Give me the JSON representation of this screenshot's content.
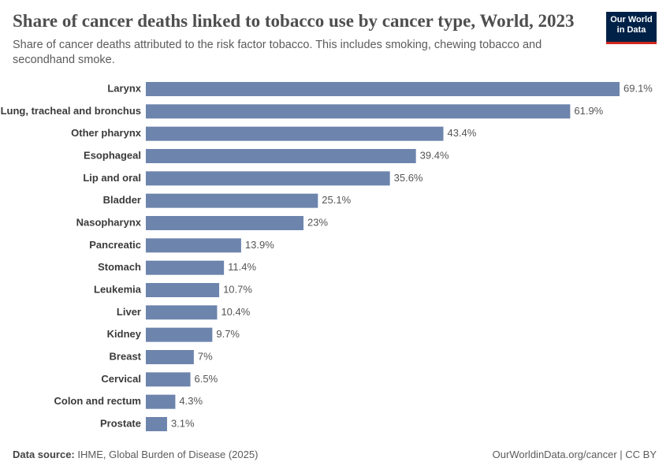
{
  "chart_data": {
    "type": "bar",
    "orientation": "horizontal",
    "title": "Share of cancer deaths linked to tobacco use by cancer type, World, 2023",
    "subtitle": "Share of cancer deaths attributed to the risk factor tobacco. This includes smoking, chewing tobacco and secondhand smoke.",
    "logo_lines": [
      "Our World",
      "in Data"
    ],
    "categories": [
      "Larynx",
      "Lung, tracheal and bronchus",
      "Other pharynx",
      "Esophageal",
      "Lip and oral",
      "Bladder",
      "Nasopharynx",
      "Pancreatic",
      "Stomach",
      "Leukemia",
      "Liver",
      "Kidney",
      "Breast",
      "Cervical",
      "Colon and rectum",
      "Prostate"
    ],
    "values": [
      69.1,
      61.9,
      43.4,
      39.4,
      35.6,
      25.1,
      23,
      13.9,
      11.4,
      10.7,
      10.4,
      9.7,
      7,
      6.5,
      4.3,
      3.1
    ],
    "value_labels": [
      "69.1%",
      "61.9%",
      "43.4%",
      "39.4%",
      "35.6%",
      "25.1%",
      "23%",
      "13.9%",
      "11.4%",
      "10.7%",
      "10.4%",
      "9.7%",
      "7%",
      "6.5%",
      "4.3%",
      "3.1%"
    ],
    "color": "#6d84ad",
    "source_label": "Data source:",
    "source": "IHME, Global Burden of Disease (2025)",
    "footer_url": "OurWorldinData.org/cancer | CC BY"
  }
}
